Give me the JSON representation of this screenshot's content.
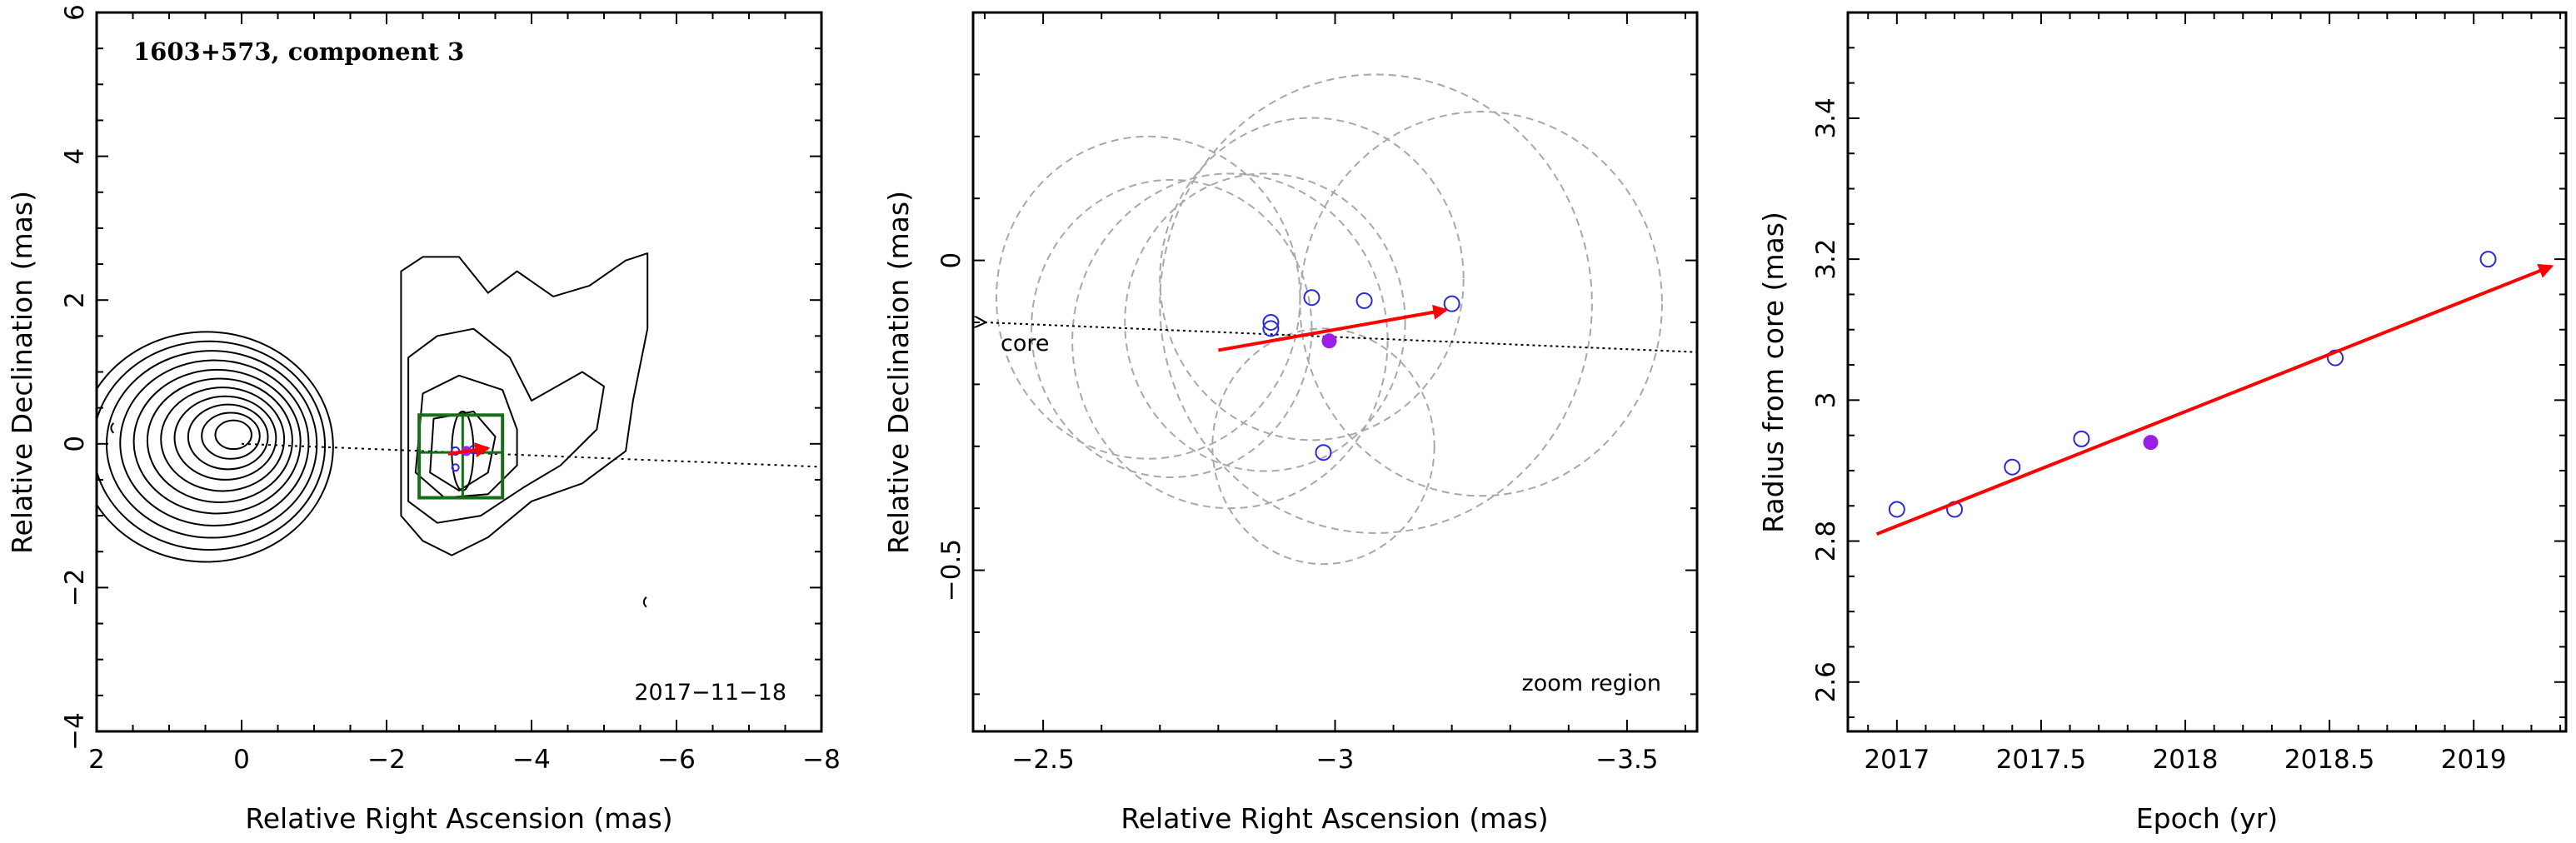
{
  "chart_data": [
    {
      "type": "contour",
      "title": "1603+573, component 3",
      "annotation": "2017−11−18",
      "xlabel": "Relative Right Ascension (mas)",
      "ylabel": "Relative Declination (mas)",
      "xlim": [
        2,
        -8
      ],
      "ylim": [
        -4,
        6
      ],
      "xticks": [
        2,
        0,
        -2,
        -4,
        -6,
        -8
      ],
      "xtick_labels": [
        "2",
        "0",
        "−2",
        "−4",
        "−6",
        "−8"
      ],
      "yticks": [
        -4,
        -2,
        0,
        2,
        4,
        6
      ],
      "ytick_labels": [
        "−4",
        "−2",
        "0",
        "2",
        "4",
        "6"
      ],
      "core_contours": {
        "center": [
          0.05,
          0.15
        ],
        "semi_axes": [
          [
            0.25,
            0.2
          ],
          [
            0.4,
            0.32
          ],
          [
            0.55,
            0.45
          ],
          [
            0.7,
            0.58
          ],
          [
            0.85,
            0.72
          ],
          [
            1.0,
            0.86
          ],
          [
            1.15,
            1.0
          ],
          [
            1.3,
            1.15
          ],
          [
            1.45,
            1.3
          ],
          [
            1.6,
            1.45
          ],
          [
            1.75,
            1.6
          ]
        ]
      },
      "jet_contours": [
        [
          [
            -2.2,
            2.4
          ],
          [
            -2.2,
            -1.0
          ],
          [
            -2.5,
            -1.35
          ],
          [
            -2.9,
            -1.55
          ],
          [
            -3.4,
            -1.3
          ],
          [
            -4.0,
            -0.8
          ],
          [
            -4.7,
            -0.55
          ],
          [
            -5.3,
            -0.1
          ],
          [
            -5.4,
            0.6
          ],
          [
            -5.6,
            1.6
          ],
          [
            -5.6,
            2.65
          ],
          [
            -5.3,
            2.55
          ],
          [
            -4.8,
            2.2
          ],
          [
            -4.3,
            2.05
          ],
          [
            -3.8,
            2.4
          ],
          [
            -3.4,
            2.1
          ],
          [
            -3.0,
            2.6
          ],
          [
            -2.5,
            2.6
          ],
          [
            -2.2,
            2.4
          ]
        ],
        [
          [
            -2.3,
            1.2
          ],
          [
            -2.3,
            -0.8
          ],
          [
            -2.7,
            -1.1
          ],
          [
            -3.3,
            -1.0
          ],
          [
            -3.9,
            -0.6
          ],
          [
            -4.4,
            -0.3
          ],
          [
            -4.9,
            0.2
          ],
          [
            -5.0,
            0.8
          ],
          [
            -4.7,
            1.0
          ],
          [
            -4.0,
            0.6
          ],
          [
            -3.7,
            1.2
          ],
          [
            -3.2,
            1.6
          ],
          [
            -2.7,
            1.5
          ],
          [
            -2.3,
            1.2
          ]
        ],
        [
          [
            -2.5,
            0.7
          ],
          [
            -2.4,
            -0.4
          ],
          [
            -2.8,
            -0.75
          ],
          [
            -3.4,
            -0.7
          ],
          [
            -3.8,
            -0.3
          ],
          [
            -3.8,
            0.2
          ],
          [
            -3.6,
            0.75
          ],
          [
            -3.0,
            0.95
          ],
          [
            -2.5,
            0.7
          ]
        ],
        [
          [
            -2.65,
            0.35
          ],
          [
            -2.6,
            -0.4
          ],
          [
            -3.0,
            -0.65
          ],
          [
            -3.4,
            -0.4
          ],
          [
            -3.5,
            0.1
          ],
          [
            -3.2,
            0.45
          ],
          [
            -2.65,
            0.35
          ]
        ]
      ],
      "inner_ellipse": {
        "center": [
          -3.05,
          -0.1
        ],
        "semi_axes": [
          0.15,
          0.55
        ]
      },
      "ridge_line": {
        "from": [
          0.0,
          0.0
        ],
        "to": [
          -8.0,
          -0.32
        ]
      },
      "zoom_box": {
        "x": [
          -2.45,
          -3.6
        ],
        "y": [
          0.4,
          -0.75
        ]
      },
      "zoom_cross": {
        "x": -3.05,
        "y": -0.12
      },
      "zoom_hline_y": -0.12,
      "points": [
        {
          "x": -2.95,
          "y": -0.1,
          "size": 0.15
        },
        {
          "x": -3.2,
          "y": -0.08,
          "size": 0.15
        },
        {
          "x": -2.95,
          "y": -0.33,
          "size": 0.08
        }
      ],
      "filled_point": {
        "x": -3.1,
        "y": -0.1
      },
      "arrow": {
        "from": [
          -2.85,
          -0.14
        ],
        "to": [
          -3.4,
          -0.06
        ]
      },
      "speckles": [
        {
          "x": 1.8,
          "y": 0.22
        },
        {
          "x": -5.55,
          "y": -2.2
        }
      ]
    },
    {
      "type": "scatter",
      "annotation": "zoom region",
      "xlabel": "Relative Right Ascension (mas)",
      "ylabel": "Relative Declination (mas)",
      "xlim": [
        -2.38,
        -3.62
      ],
      "ylim": [
        -0.76,
        0.4
      ],
      "xticks": [
        -2.5,
        -3,
        -3.5
      ],
      "xtick_labels": [
        "−2.5",
        "−3",
        "−3.5"
      ],
      "xminor_step": 0.1,
      "yticks": [
        0,
        -0.5
      ],
      "ytick_labels": [
        "0",
        "−0.5"
      ],
      "yminor_step": 0.1,
      "ridge_line": {
        "from": [
          -2.4,
          -0.1
        ],
        "to": [
          -3.62,
          -0.148
        ]
      },
      "core_label": "core",
      "points": [
        {
          "x": -2.89,
          "y": -0.1
        },
        {
          "x": -2.89,
          "y": -0.11
        },
        {
          "x": -2.96,
          "y": -0.06
        },
        {
          "x": -3.05,
          "y": -0.065
        },
        {
          "x": -3.2,
          "y": -0.07
        },
        {
          "x": -2.98,
          "y": -0.31
        }
      ],
      "filled_point": {
        "x": -2.99,
        "y": -0.13
      },
      "arrow": {
        "from": [
          -2.8,
          -0.145
        ],
        "to": [
          -3.19,
          -0.08
        ]
      },
      "error_circles": [
        {
          "x": -2.68,
          "y": -0.06,
          "r": 0.26
        },
        {
          "x": -2.72,
          "y": -0.11,
          "r": 0.24
        },
        {
          "x": -2.82,
          "y": -0.13,
          "r": 0.27
        },
        {
          "x": -2.88,
          "y": -0.1,
          "r": 0.24
        },
        {
          "x": -2.96,
          "y": -0.03,
          "r": 0.26
        },
        {
          "x": -2.98,
          "y": -0.3,
          "r": 0.19
        },
        {
          "x": -3.07,
          "y": -0.07,
          "r": 0.37
        },
        {
          "x": -3.25,
          "y": -0.07,
          "r": 0.31
        }
      ]
    },
    {
      "type": "scatter",
      "xlabel": "Epoch (yr)",
      "ylabel": "Radius from core (mas)",
      "xlim": [
        2016.83,
        2019.32
      ],
      "ylim": [
        2.53,
        3.55
      ],
      "xticks": [
        2017,
        2017.5,
        2018,
        2018.5,
        2019
      ],
      "xtick_labels": [
        "2017",
        "2017.5",
        "2018",
        "2018.5",
        "2019"
      ],
      "xminor_step": 0.1,
      "yticks": [
        2.6,
        2.8,
        3.0,
        3.2,
        3.4
      ],
      "ytick_labels": [
        "2.6",
        "2.8",
        "3",
        "3.2",
        "3.4"
      ],
      "yminor_step": 0.05,
      "points": [
        {
          "x": 2017.0,
          "y": 2.845
        },
        {
          "x": 2017.2,
          "y": 2.845
        },
        {
          "x": 2017.4,
          "y": 2.905
        },
        {
          "x": 2017.64,
          "y": 2.945
        },
        {
          "x": 2018.52,
          "y": 3.06
        },
        {
          "x": 2019.05,
          "y": 3.2
        }
      ],
      "filled_point": {
        "x": 2017.88,
        "y": 2.94
      },
      "fit_arrow": {
        "from": [
          2016.93,
          2.81
        ],
        "to": [
          2019.27,
          3.19
        ]
      }
    }
  ]
}
